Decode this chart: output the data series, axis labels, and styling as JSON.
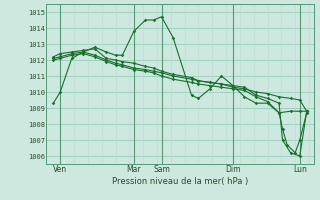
{
  "xlabel": "Pression niveau de la mer( hPa )",
  "bg_color": "#cce8df",
  "grid_color_major": "#99ccbb",
  "grid_color_minor": "#bbddcc",
  "line_color": "#1a6e2e",
  "ylim": [
    1005.5,
    1015.5
  ],
  "xlim": [
    -0.3,
    11.3
  ],
  "yticks": [
    1006,
    1007,
    1008,
    1009,
    1010,
    1011,
    1012,
    1013,
    1014,
    1015
  ],
  "xtick_positions": [
    0.3,
    3.5,
    4.7,
    7.8,
    10.7
  ],
  "xtick_labels": [
    "Ven",
    "Mar",
    "Sam",
    "Dim",
    "Lun"
  ],
  "vlines_dark": [
    3.5,
    4.7,
    7.8,
    10.7
  ],
  "vline_left": [
    0.3
  ],
  "lines": [
    {
      "x": [
        0.0,
        0.3,
        0.8,
        1.3,
        1.8,
        2.3,
        2.7,
        3.0,
        3.5,
        4.0,
        4.35,
        4.7,
        5.2,
        6.0,
        6.3,
        6.8,
        7.3,
        7.8,
        8.3,
        8.8,
        9.3,
        9.8,
        10.3,
        10.7,
        11.0
      ],
      "y": [
        1009.3,
        1010.0,
        1012.1,
        1012.5,
        1012.8,
        1012.5,
        1012.3,
        1012.3,
        1013.8,
        1014.5,
        1014.5,
        1014.7,
        1013.4,
        1009.8,
        1009.6,
        1010.2,
        1011.0,
        1010.4,
        1009.7,
        1009.3,
        1009.3,
        1008.7,
        1008.8,
        1008.8,
        1008.8
      ],
      "marker": "D"
    },
    {
      "x": [
        0.0,
        0.3,
        0.8,
        1.3,
        1.8,
        2.3,
        2.7,
        3.0,
        3.5,
        4.0,
        4.35,
        4.7,
        5.2,
        6.0,
        6.3,
        6.8,
        7.3,
        7.8,
        8.3,
        8.8,
        9.3,
        9.8,
        10.3,
        10.7,
        11.0
      ],
      "y": [
        1012.2,
        1012.4,
        1012.5,
        1012.6,
        1012.7,
        1012.1,
        1012.0,
        1011.9,
        1011.8,
        1011.6,
        1011.5,
        1011.3,
        1011.1,
        1010.9,
        1010.7,
        1010.6,
        1010.5,
        1010.3,
        1010.2,
        1010.0,
        1009.9,
        1009.7,
        1009.6,
        1009.5,
        1008.8
      ],
      "marker": "D"
    },
    {
      "x": [
        0.0,
        0.3,
        0.8,
        1.3,
        1.8,
        2.3,
        2.7,
        3.0,
        3.5,
        4.0,
        4.35,
        4.7,
        5.2,
        6.0,
        6.3,
        6.8,
        7.3,
        7.8,
        8.3,
        8.8,
        9.3,
        9.8,
        9.95,
        10.3,
        10.7,
        11.0
      ],
      "y": [
        1012.1,
        1012.2,
        1012.4,
        1012.5,
        1012.3,
        1012.0,
        1011.8,
        1011.7,
        1011.5,
        1011.4,
        1011.3,
        1011.2,
        1011.0,
        1010.8,
        1010.7,
        1010.6,
        1010.5,
        1010.4,
        1010.3,
        1009.8,
        1009.6,
        1009.3,
        1007.0,
        1006.2,
        1006.0,
        1008.8
      ],
      "marker": "D"
    },
    {
      "x": [
        0.0,
        0.3,
        0.8,
        1.3,
        1.8,
        2.3,
        2.7,
        3.0,
        3.5,
        4.0,
        4.35,
        4.7,
        5.2,
        6.0,
        6.3,
        6.8,
        7.3,
        7.8,
        8.3,
        8.8,
        9.3,
        9.8,
        9.95,
        10.15,
        10.5,
        10.7,
        11.0
      ],
      "y": [
        1012.0,
        1012.1,
        1012.3,
        1012.4,
        1012.2,
        1011.9,
        1011.7,
        1011.6,
        1011.4,
        1011.3,
        1011.2,
        1011.0,
        1010.8,
        1010.6,
        1010.5,
        1010.4,
        1010.3,
        1010.2,
        1010.1,
        1009.7,
        1009.4,
        1008.7,
        1007.7,
        1006.7,
        1006.2,
        1007.0,
        1008.7
      ],
      "marker": "D"
    }
  ]
}
